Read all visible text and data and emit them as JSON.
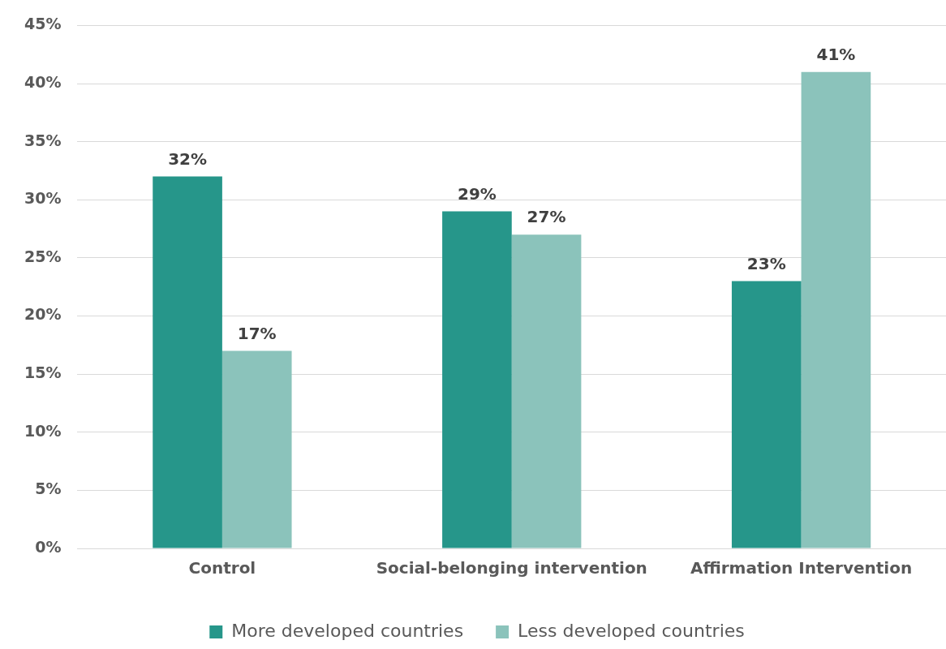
{
  "chart_data": {
    "type": "bar",
    "categories": [
      "Control",
      "Social-belonging intervention",
      "Affirmation Intervention"
    ],
    "series": [
      {
        "name": "More developed countries",
        "color": "#26968a",
        "values": [
          32,
          29,
          23
        ],
        "value_labels": [
          "32%",
          "29%",
          "23%"
        ]
      },
      {
        "name": "Less developed countries",
        "color": "#8bc3bb",
        "values": [
          17,
          27,
          41
        ],
        "value_labels": [
          "17%",
          "27%",
          "41%"
        ]
      }
    ],
    "ylim": [
      0,
      45
    ],
    "yticks": [
      {
        "value": 0,
        "label": "0%"
      },
      {
        "value": 5,
        "label": "5%"
      },
      {
        "value": 10,
        "label": "10%"
      },
      {
        "value": 15,
        "label": "15%"
      },
      {
        "value": 20,
        "label": "20%"
      },
      {
        "value": 25,
        "label": "25%"
      },
      {
        "value": 30,
        "label": "30%"
      },
      {
        "value": 35,
        "label": "35%"
      },
      {
        "value": 40,
        "label": "40%"
      },
      {
        "value": 45,
        "label": "45%"
      }
    ],
    "grid": "y",
    "legend": "bottom"
  }
}
